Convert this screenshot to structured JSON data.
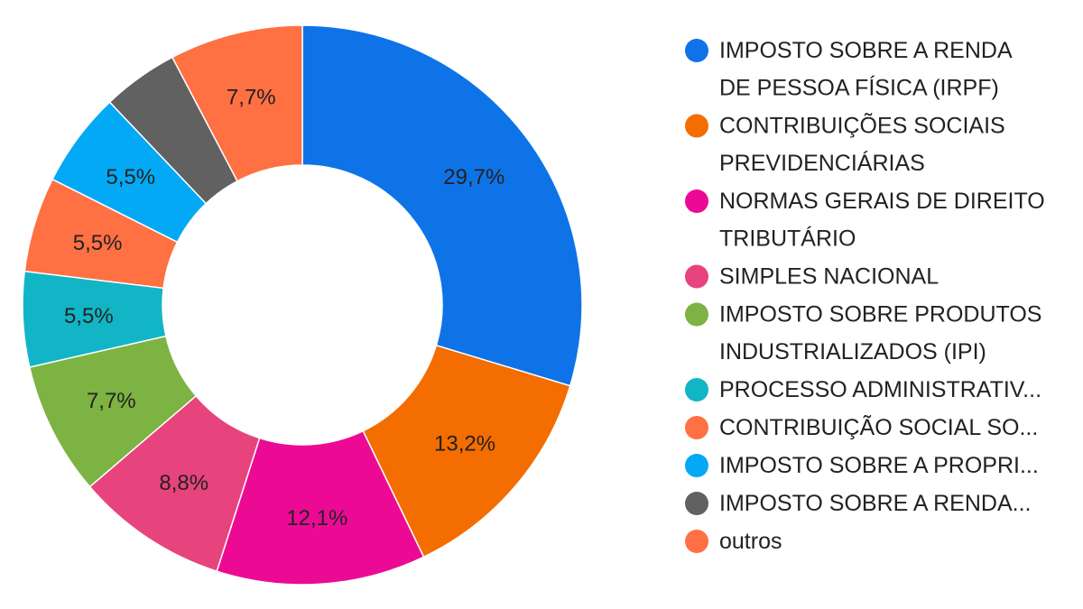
{
  "chart_data": {
    "type": "pie",
    "variant": "donut",
    "legend_position": "right",
    "title": "",
    "series": [
      {
        "name": "IMPOSTO SOBRE A RENDA DE PESSOA FÍSICA (IRPF)",
        "legend_lines": [
          "IMPOSTO SOBRE A RENDA",
          "DE PESSOA FÍSICA (IRPF)"
        ],
        "value": 29.7,
        "label": "29,7%",
        "color": "#0f73e8"
      },
      {
        "name": "CONTRIBUIÇÕES SOCIAIS PREVIDENCIÁRIAS",
        "legend_lines": [
          "CONTRIBUIÇÕES SOCIAIS",
          "PREVIDENCIÁRIAS"
        ],
        "value": 13.2,
        "label": "13,2%",
        "color": "#f46d00"
      },
      {
        "name": "NORMAS GERAIS DE DIREITO TRIBUTÁRIO",
        "legend_lines": [
          "NORMAS GERAIS DE DIREITO",
          "TRIBUTÁRIO"
        ],
        "value": 12.1,
        "label": "12,1%",
        "color": "#ec0a94"
      },
      {
        "name": "SIMPLES NACIONAL",
        "legend_lines": [
          "SIMPLES NACIONAL"
        ],
        "value": 8.8,
        "label": "8,8%",
        "color": "#e7437c"
      },
      {
        "name": "IMPOSTO SOBRE PRODUTOS INDUSTRIALIZADOS (IPI)",
        "legend_lines": [
          "IMPOSTO SOBRE PRODUTOS",
          "INDUSTRIALIZADOS (IPI)"
        ],
        "value": 7.7,
        "label": "7,7%",
        "color": "#7cb342"
      },
      {
        "name": "PROCESSO ADMINISTRATIV...",
        "legend_lines": [
          "PROCESSO ADMINISTRATIV..."
        ],
        "value": 5.5,
        "label": "5,5%",
        "color": "#12b5c6"
      },
      {
        "name": "CONTRIBUIÇÃO SOCIAL SO...",
        "legend_lines": [
          "CONTRIBUIÇÃO SOCIAL SO..."
        ],
        "value": 5.5,
        "label": "5,5%",
        "color": "#ff7043"
      },
      {
        "name": "IMPOSTO SOBRE A PROPRI...",
        "legend_lines": [
          "IMPOSTO SOBRE A PROPRI..."
        ],
        "value": 5.5,
        "label": "5,5%",
        "color": "#03a9f4"
      },
      {
        "name": "IMPOSTO SOBRE A RENDA...",
        "legend_lines": [
          "IMPOSTO SOBRE A RENDA..."
        ],
        "value": 4.4,
        "label": "",
        "color": "#616161"
      },
      {
        "name": "outros",
        "legend_lines": [
          "outros"
        ],
        "value": 7.7,
        "label": "7,7%",
        "color": "#ff7043"
      }
    ]
  }
}
